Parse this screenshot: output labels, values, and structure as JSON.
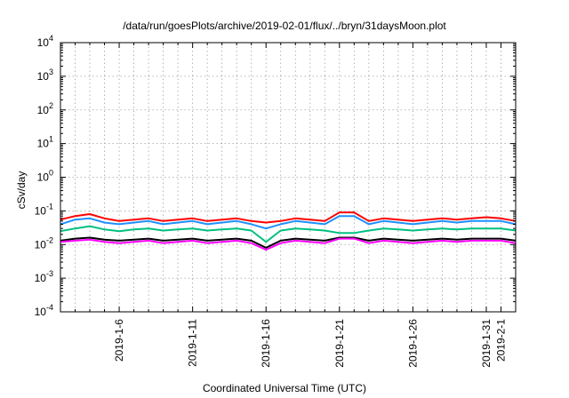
{
  "chart_data": {
    "type": "line",
    "title": "/data/run/goesPlots/archive/2019-02-01/flux/../bryn/31daysMoon.plot",
    "xlabel": "Coordinated Universal Time (UTC)",
    "ylabel": "cSv/day",
    "yscale": "log",
    "ylim": [
      0.0001,
      10000
    ],
    "xlim": [
      "2019-01-02",
      "2019-02-02"
    ],
    "grid": true,
    "y_ticks": [
      {
        "value": 0.0001,
        "base": "10",
        "exp": "-4"
      },
      {
        "value": 0.001,
        "base": "10",
        "exp": "-3"
      },
      {
        "value": 0.01,
        "base": "10",
        "exp": "-2"
      },
      {
        "value": 0.1,
        "base": "10",
        "exp": "-1"
      },
      {
        "value": 1,
        "base": "10",
        "exp": "0"
      },
      {
        "value": 10,
        "base": "10",
        "exp": "1"
      },
      {
        "value": 100,
        "base": "10",
        "exp": "2"
      },
      {
        "value": 1000,
        "base": "10",
        "exp": "3"
      },
      {
        "value": 10000,
        "base": "10",
        "exp": "4"
      }
    ],
    "x_ticks": [
      {
        "date": "2019-01-06",
        "label": "2019-1-6"
      },
      {
        "date": "2019-01-11",
        "label": "2019-1-11"
      },
      {
        "date": "2019-01-16",
        "label": "2019-1-16"
      },
      {
        "date": "2019-01-21",
        "label": "2019-1-21"
      },
      {
        "date": "2019-01-26",
        "label": "2019-1-26"
      },
      {
        "date": "2019-01-31",
        "label": "2019-1-31"
      },
      {
        "date": "2019-02-01",
        "label": "2019-2-1"
      }
    ],
    "x_minor_ticks": [
      "2019-01-03",
      "2019-01-04",
      "2019-01-05",
      "2019-01-07",
      "2019-01-08",
      "2019-01-09",
      "2019-01-10",
      "2019-01-12",
      "2019-01-13",
      "2019-01-14",
      "2019-01-15",
      "2019-01-17",
      "2019-01-18",
      "2019-01-19",
      "2019-01-20",
      "2019-01-22",
      "2019-01-23",
      "2019-01-24",
      "2019-01-25",
      "2019-01-27",
      "2019-01-28",
      "2019-01-29",
      "2019-01-30",
      "2019-02-02"
    ],
    "series": [
      {
        "color": "#ff0000",
        "x": [
          "2019-01-02",
          "2019-01-03",
          "2019-01-04",
          "2019-01-05",
          "2019-01-06",
          "2019-01-07",
          "2019-01-08",
          "2019-01-09",
          "2019-01-10",
          "2019-01-11",
          "2019-01-12",
          "2019-01-13",
          "2019-01-14",
          "2019-01-15",
          "2019-01-16",
          "2019-01-17",
          "2019-01-18",
          "2019-01-19",
          "2019-01-20",
          "2019-01-21",
          "2019-01-22",
          "2019-01-23",
          "2019-01-24",
          "2019-01-25",
          "2019-01-26",
          "2019-01-27",
          "2019-01-28",
          "2019-01-29",
          "2019-01-30",
          "2019-01-31",
          "2019-02-01",
          "2019-02-02"
        ],
        "y": [
          0.055,
          0.07,
          0.08,
          0.06,
          0.05,
          0.055,
          0.06,
          0.05,
          0.055,
          0.06,
          0.05,
          0.055,
          0.06,
          0.05,
          0.045,
          0.05,
          0.06,
          0.055,
          0.05,
          0.09,
          0.09,
          0.05,
          0.06,
          0.055,
          0.05,
          0.055,
          0.06,
          0.055,
          0.06,
          0.065,
          0.06,
          0.05
        ]
      },
      {
        "color": "#1e90ff",
        "x": [
          "2019-01-02",
          "2019-01-03",
          "2019-01-04",
          "2019-01-05",
          "2019-01-06",
          "2019-01-07",
          "2019-01-08",
          "2019-01-09",
          "2019-01-10",
          "2019-01-11",
          "2019-01-12",
          "2019-01-13",
          "2019-01-14",
          "2019-01-15",
          "2019-01-16",
          "2019-01-17",
          "2019-01-18",
          "2019-01-19",
          "2019-01-20",
          "2019-01-21",
          "2019-01-22",
          "2019-01-23",
          "2019-01-24",
          "2019-01-25",
          "2019-01-26",
          "2019-01-27",
          "2019-01-28",
          "2019-01-29",
          "2019-01-30",
          "2019-01-31",
          "2019-02-01",
          "2019-02-02"
        ],
        "y": [
          0.04,
          0.055,
          0.06,
          0.045,
          0.04,
          0.045,
          0.05,
          0.04,
          0.045,
          0.05,
          0.04,
          0.045,
          0.05,
          0.04,
          0.03,
          0.04,
          0.05,
          0.045,
          0.04,
          0.07,
          0.07,
          0.04,
          0.05,
          0.045,
          0.04,
          0.045,
          0.05,
          0.045,
          0.05,
          0.05,
          0.05,
          0.04
        ]
      },
      {
        "color": "#00c080",
        "x": [
          "2019-01-02",
          "2019-01-03",
          "2019-01-04",
          "2019-01-05",
          "2019-01-06",
          "2019-01-07",
          "2019-01-08",
          "2019-01-09",
          "2019-01-10",
          "2019-01-11",
          "2019-01-12",
          "2019-01-13",
          "2019-01-14",
          "2019-01-15",
          "2019-01-16",
          "2019-01-17",
          "2019-01-18",
          "2019-01-19",
          "2019-01-20",
          "2019-01-21",
          "2019-01-22",
          "2019-01-23",
          "2019-01-24",
          "2019-01-25",
          "2019-01-26",
          "2019-01-27",
          "2019-01-28",
          "2019-01-29",
          "2019-01-30",
          "2019-01-31",
          "2019-02-01",
          "2019-02-02"
        ],
        "y": [
          0.025,
          0.03,
          0.035,
          0.028,
          0.025,
          0.028,
          0.03,
          0.026,
          0.028,
          0.03,
          0.026,
          0.028,
          0.03,
          0.026,
          0.012,
          0.026,
          0.03,
          0.028,
          0.026,
          0.022,
          0.022,
          0.026,
          0.03,
          0.028,
          0.026,
          0.028,
          0.03,
          0.028,
          0.03,
          0.03,
          0.03,
          0.026
        ]
      },
      {
        "color": "#000000",
        "x": [
          "2019-01-02",
          "2019-01-03",
          "2019-01-04",
          "2019-01-05",
          "2019-01-06",
          "2019-01-07",
          "2019-01-08",
          "2019-01-09",
          "2019-01-10",
          "2019-01-11",
          "2019-01-12",
          "2019-01-13",
          "2019-01-14",
          "2019-01-15",
          "2019-01-16",
          "2019-01-17",
          "2019-01-18",
          "2019-01-19",
          "2019-01-20",
          "2019-01-21",
          "2019-01-22",
          "2019-01-23",
          "2019-01-24",
          "2019-01-25",
          "2019-01-26",
          "2019-01-27",
          "2019-01-28",
          "2019-01-29",
          "2019-01-30",
          "2019-01-31",
          "2019-02-01",
          "2019-02-02"
        ],
        "y": [
          0.013,
          0.015,
          0.016,
          0.014,
          0.013,
          0.014,
          0.015,
          0.013,
          0.014,
          0.015,
          0.013,
          0.014,
          0.015,
          0.013,
          0.008,
          0.013,
          0.015,
          0.014,
          0.013,
          0.016,
          0.016,
          0.013,
          0.015,
          0.014,
          0.013,
          0.014,
          0.015,
          0.014,
          0.015,
          0.015,
          0.015,
          0.013
        ]
      },
      {
        "color": "#ff00ff",
        "x": [
          "2019-01-02",
          "2019-01-03",
          "2019-01-04",
          "2019-01-05",
          "2019-01-06",
          "2019-01-07",
          "2019-01-08",
          "2019-01-09",
          "2019-01-10",
          "2019-01-11",
          "2019-01-12",
          "2019-01-13",
          "2019-01-14",
          "2019-01-15",
          "2019-01-16",
          "2019-01-17",
          "2019-01-18",
          "2019-01-19",
          "2019-01-20",
          "2019-01-21",
          "2019-01-22",
          "2019-01-23",
          "2019-01-24",
          "2019-01-25",
          "2019-01-26",
          "2019-01-27",
          "2019-01-28",
          "2019-01-29",
          "2019-01-30",
          "2019-01-31",
          "2019-02-01",
          "2019-02-02"
        ],
        "y": [
          0.012,
          0.013,
          0.014,
          0.012,
          0.011,
          0.012,
          0.013,
          0.011,
          0.012,
          0.013,
          0.011,
          0.012,
          0.013,
          0.011,
          0.007,
          0.011,
          0.013,
          0.012,
          0.011,
          0.015,
          0.015,
          0.011,
          0.013,
          0.012,
          0.011,
          0.012,
          0.013,
          0.012,
          0.013,
          0.013,
          0.013,
          0.011
        ]
      }
    ]
  }
}
